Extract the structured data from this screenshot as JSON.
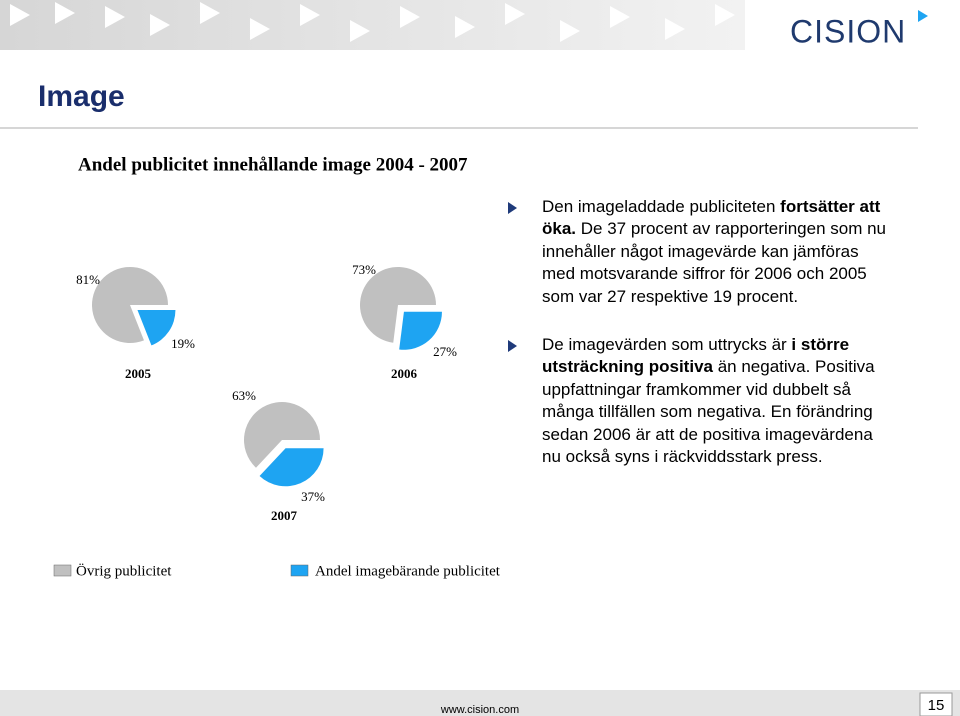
{
  "header": {
    "title": "Image",
    "logo": "CISION"
  },
  "figure": {
    "title": "Andel publicitet innehållande image 2004 - 2007",
    "categories": [
      "Övrig publicitet",
      "Andel imagebärande publicitet"
    ],
    "colors": [
      "#c0c0c0",
      "#1ea4f2"
    ]
  },
  "chart_data": [
    {
      "type": "pie",
      "title": "2005",
      "values": [
        81,
        19
      ],
      "value_labels": [
        "81%",
        "19%"
      ]
    },
    {
      "type": "pie",
      "title": "2006",
      "values": [
        73,
        27
      ],
      "value_labels": [
        "73%",
        "27%"
      ]
    },
    {
      "type": "pie",
      "title": "2007",
      "values": [
        63,
        37
      ],
      "value_labels": [
        "63%",
        "37%"
      ]
    }
  ],
  "bullets": [
    [
      {
        "text": "Den imageladdade publiciteten ",
        "bold": false
      },
      {
        "text": "fortsätter att öka.",
        "bold": true
      },
      {
        "text": " De 37 procent av rapporteringen som nu innehåller något imagevärde kan jämföras med motsvarande siffror för 2006 och 2005 som var 27 respektive 19 procent.",
        "bold": false
      }
    ],
    [
      {
        "text": "De imagevärden som uttrycks är ",
        "bold": false
      },
      {
        "text": "i större utsträckning positiva",
        "bold": true
      },
      {
        "text": " än negativa. Positiva uppfattningar framkommer vid dubbelt så många tillfällen som negativa. En förändring sedan 2006 är att de positiva imagevärdena nu också syns i räckviddsstark press.",
        "bold": false
      }
    ]
  ],
  "footer": {
    "url": "www.cision.com",
    "page": "15"
  }
}
